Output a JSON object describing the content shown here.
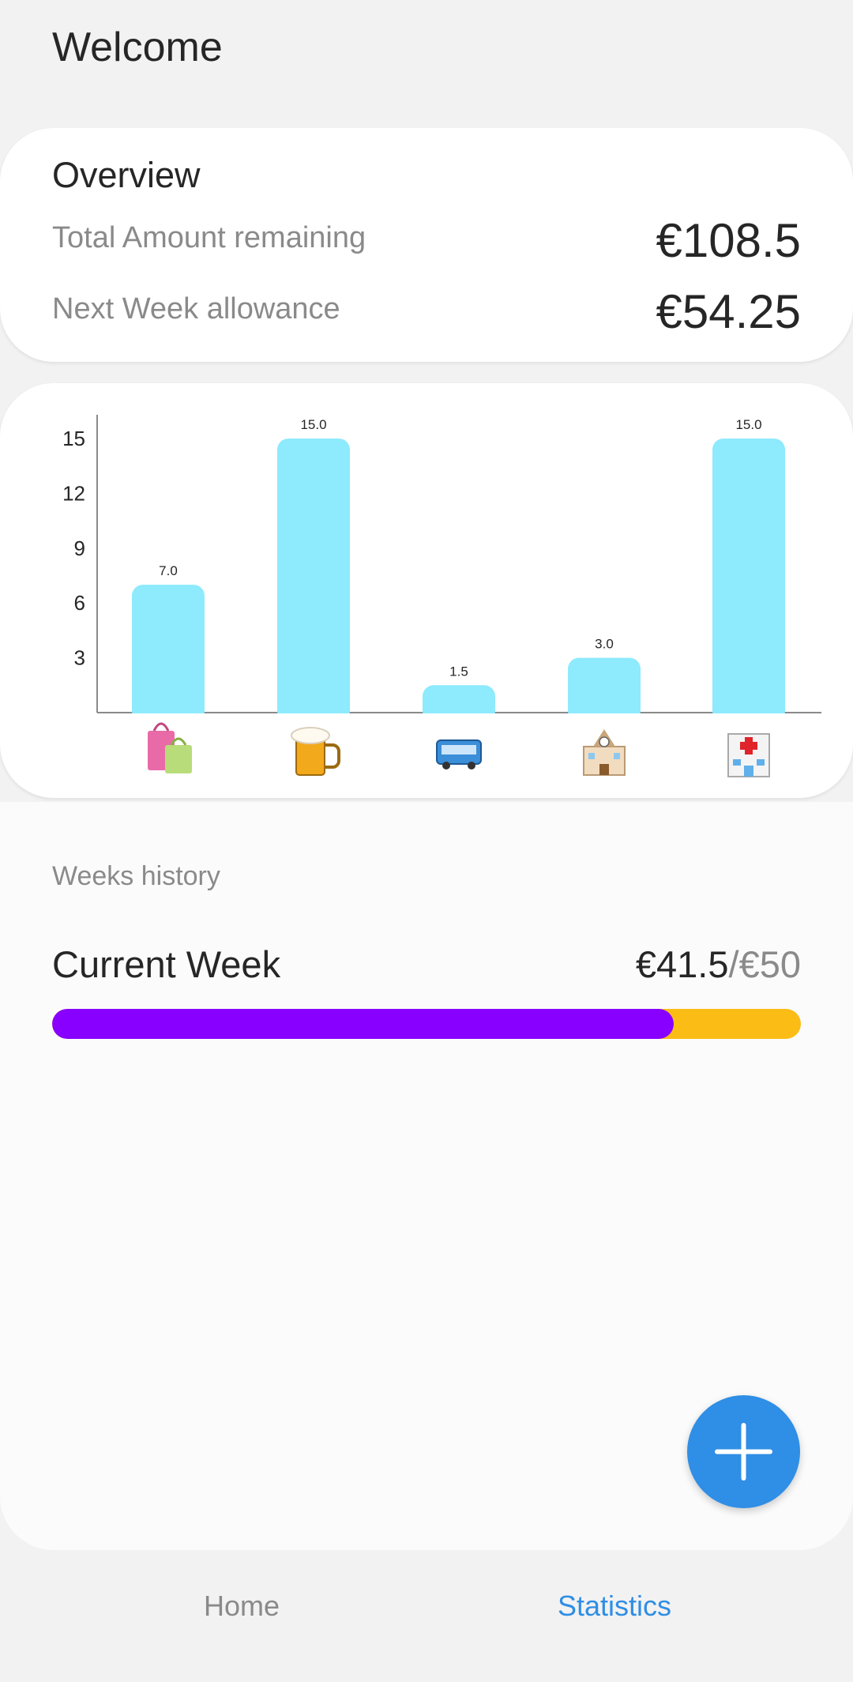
{
  "header": {
    "title": "Welcome"
  },
  "overview": {
    "title": "Overview",
    "total_label": "Total Amount remaining",
    "total_value": "€108.5",
    "next_label": "Next Week allowance",
    "next_value": "€54.25"
  },
  "chart_data": {
    "type": "bar",
    "categories": [
      "shopping-bags",
      "beer-mug",
      "bus",
      "school",
      "hospital"
    ],
    "values": [
      7.0,
      15.0,
      1.5,
      3.0,
      15.0
    ],
    "data_labels": [
      "7.0",
      "15.0",
      "1.5",
      "3.0",
      "15.0"
    ],
    "y_ticks": [
      3,
      6,
      9,
      12,
      15
    ],
    "ylim": [
      0,
      16.3
    ],
    "bar_color": "#8eeafd",
    "grid": false
  },
  "history": {
    "section_label": "Weeks history",
    "current_week_label": "Current Week",
    "spent": "€41.5",
    "limit": "/€50",
    "progress_fraction": 0.83,
    "fill_color": "#8800ff",
    "track_color": "#fcbc16"
  },
  "fab": {
    "icon": "plus-icon",
    "color": "#2f8ee5"
  },
  "nav": {
    "home_label": "Home",
    "stats_label": "Statistics"
  }
}
